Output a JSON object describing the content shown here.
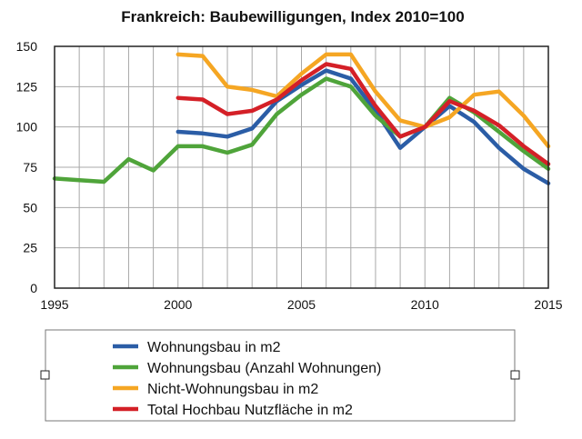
{
  "chart_data": {
    "type": "line",
    "title": "Frankreich: Baubewilligungen, Index 2010=100",
    "xlabel": "",
    "ylabel": "",
    "xlim": [
      1995,
      2015
    ],
    "ylim": [
      0,
      150
    ],
    "x_ticks": [
      "1995",
      "2000",
      "2005",
      "2010",
      "2015"
    ],
    "y_ticks": [
      "0",
      "25",
      "50",
      "75",
      "100",
      "125",
      "150"
    ],
    "grid": true,
    "legend_position": "bottom",
    "series": [
      {
        "name": "Wohnungsbau in m2",
        "color": "#2b5da6",
        "x": [
          2000,
          2001,
          2002,
          2003,
          2004,
          2005,
          2006,
          2007,
          2008,
          2009,
          2010,
          2011,
          2012,
          2013,
          2014,
          2015
        ],
        "y": [
          97,
          96,
          94,
          99,
          116,
          126,
          135,
          130,
          110,
          87,
          100,
          113,
          103,
          87,
          74,
          65
        ]
      },
      {
        "name": "Wohnungsbau (Anzahl Wohnungen)",
        "color": "#4fa43a",
        "x": [
          1995,
          1996,
          1997,
          1998,
          1999,
          2000,
          2001,
          2002,
          2003,
          2004,
          2005,
          2006,
          2007,
          2008,
          2009,
          2010,
          2011,
          2012,
          2013,
          2014,
          2015
        ],
        "y": [
          68,
          67,
          66,
          80,
          73,
          88,
          88,
          84,
          89,
          108,
          120,
          130,
          125,
          107,
          94,
          100,
          118,
          109,
          97,
          85,
          74
        ]
      },
      {
        "name": "Nicht-Wohnungsbau in m2",
        "color": "#f5a623",
        "x": [
          2000,
          2001,
          2002,
          2003,
          2004,
          2005,
          2006,
          2007,
          2008,
          2009,
          2010,
          2011,
          2012,
          2013,
          2014,
          2015
        ],
        "y": [
          145,
          144,
          125,
          123,
          119,
          133,
          145,
          145,
          122,
          104,
          100,
          106,
          120,
          122,
          107,
          88
        ]
      },
      {
        "name": "Total Hochbau Nutzfläche in m2",
        "color": "#d42027",
        "x": [
          2000,
          2001,
          2002,
          2003,
          2004,
          2005,
          2006,
          2007,
          2008,
          2009,
          2010,
          2011,
          2012,
          2013,
          2014,
          2015
        ],
        "y": [
          118,
          117,
          108,
          110,
          117,
          129,
          139,
          136,
          113,
          94,
          100,
          116,
          110,
          101,
          88,
          77
        ]
      }
    ]
  }
}
